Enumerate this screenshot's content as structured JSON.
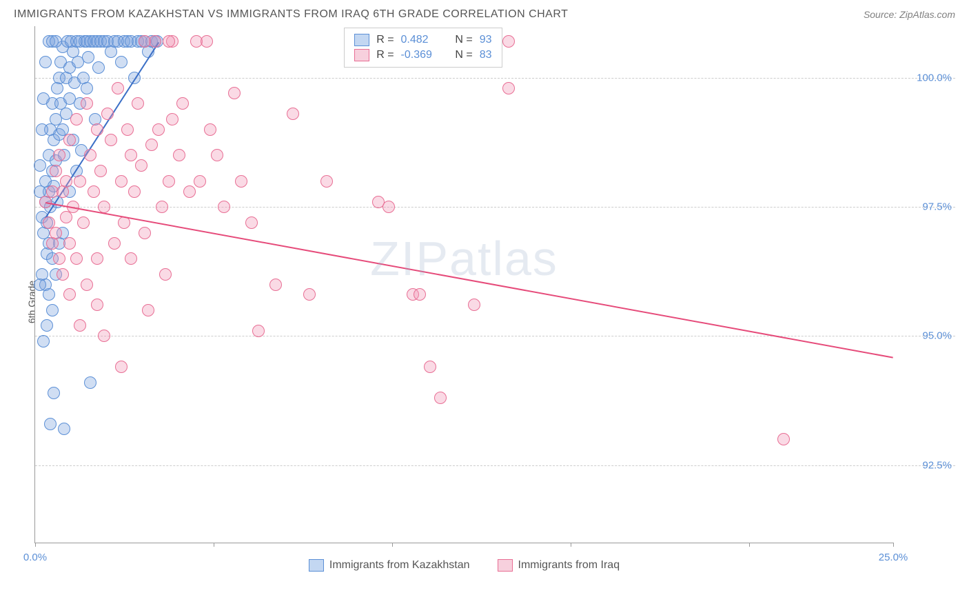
{
  "header": {
    "title": "IMMIGRANTS FROM KAZAKHSTAN VS IMMIGRANTS FROM IRAQ 6TH GRADE CORRELATION CHART",
    "source": "Source: ZipAtlas.com"
  },
  "watermark": {
    "part1": "ZIP",
    "part2": "atlas"
  },
  "chart": {
    "type": "scatter",
    "y_axis_label": "6th Grade",
    "xlim": [
      0,
      25
    ],
    "ylim": [
      91,
      101
    ],
    "x_ticks": [
      0,
      5.2,
      10.4,
      15.6,
      20.8,
      25
    ],
    "x_tick_labels": {
      "0": "0.0%",
      "25": "25.0%"
    },
    "y_grid": [
      92.5,
      95.0,
      97.5,
      100.0
    ],
    "y_tick_labels": {
      "92.5": "92.5%",
      "95.0": "95.0%",
      "97.5": "97.5%",
      "100.0": "100.0%"
    },
    "background_color": "#ffffff",
    "grid_color": "#cccccc",
    "axis_color": "#999999",
    "label_color": "#5b8fd6",
    "marker_radius": 9,
    "marker_opacity": 0.5,
    "series": [
      {
        "name": "Immigrants from Kazakhstan",
        "color_fill": "rgba(120,160,220,0.35)",
        "color_stroke": "#5b8fd6",
        "legend_swatch_fill": "#c3d7f2",
        "legend_swatch_border": "#5b8fd6",
        "R": "0.482",
        "N": "93",
        "trend": {
          "x1": 0.3,
          "y1": 97.3,
          "x2": 3.6,
          "y2": 100.7,
          "color": "#3b6fc6",
          "width": 2
        },
        "points": [
          [
            0.2,
            97.3
          ],
          [
            0.25,
            97.0
          ],
          [
            0.3,
            97.6
          ],
          [
            0.3,
            98.0
          ],
          [
            0.35,
            97.2
          ],
          [
            0.35,
            96.6
          ],
          [
            0.4,
            98.5
          ],
          [
            0.4,
            97.8
          ],
          [
            0.4,
            96.8
          ],
          [
            0.45,
            99.0
          ],
          [
            0.45,
            97.5
          ],
          [
            0.5,
            98.2
          ],
          [
            0.5,
            99.5
          ],
          [
            0.5,
            96.5
          ],
          [
            0.55,
            98.8
          ],
          [
            0.55,
            97.9
          ],
          [
            0.6,
            99.2
          ],
          [
            0.6,
            98.4
          ],
          [
            0.65,
            99.8
          ],
          [
            0.65,
            97.6
          ],
          [
            0.7,
            100.0
          ],
          [
            0.7,
            98.9
          ],
          [
            0.75,
            99.5
          ],
          [
            0.75,
            100.3
          ],
          [
            0.8,
            99.0
          ],
          [
            0.8,
            100.6
          ],
          [
            0.85,
            98.5
          ],
          [
            0.9,
            100.0
          ],
          [
            0.9,
            99.3
          ],
          [
            0.95,
            100.7
          ],
          [
            1.0,
            100.2
          ],
          [
            1.0,
            99.6
          ],
          [
            1.05,
            100.7
          ],
          [
            1.1,
            98.8
          ],
          [
            1.1,
            100.5
          ],
          [
            1.15,
            99.9
          ],
          [
            1.2,
            100.7
          ],
          [
            1.25,
            100.3
          ],
          [
            1.3,
            99.5
          ],
          [
            1.3,
            100.7
          ],
          [
            1.35,
            98.6
          ],
          [
            1.4,
            100.0
          ],
          [
            1.45,
            100.7
          ],
          [
            1.5,
            99.8
          ],
          [
            1.5,
            100.7
          ],
          [
            1.55,
            100.4
          ],
          [
            1.6,
            100.7
          ],
          [
            1.7,
            100.7
          ],
          [
            1.75,
            99.2
          ],
          [
            1.8,
            100.7
          ],
          [
            1.85,
            100.2
          ],
          [
            1.9,
            100.7
          ],
          [
            2.0,
            100.7
          ],
          [
            2.1,
            100.7
          ],
          [
            2.2,
            100.5
          ],
          [
            2.3,
            100.7
          ],
          [
            2.4,
            100.7
          ],
          [
            2.5,
            100.3
          ],
          [
            2.6,
            100.7
          ],
          [
            2.7,
            100.7
          ],
          [
            2.8,
            100.7
          ],
          [
            2.9,
            100.0
          ],
          [
            3.0,
            100.7
          ],
          [
            3.1,
            100.7
          ],
          [
            3.2,
            100.7
          ],
          [
            3.3,
            100.5
          ],
          [
            3.4,
            100.7
          ],
          [
            3.5,
            100.7
          ],
          [
            3.55,
            100.7
          ],
          [
            0.3,
            96.0
          ],
          [
            0.4,
            95.8
          ],
          [
            0.5,
            95.5
          ],
          [
            0.35,
            95.2
          ],
          [
            0.6,
            96.2
          ],
          [
            0.7,
            96.8
          ],
          [
            0.8,
            97.0
          ],
          [
            0.25,
            94.9
          ],
          [
            0.45,
            93.3
          ],
          [
            0.85,
            93.2
          ],
          [
            1.6,
            94.1
          ],
          [
            0.55,
            93.9
          ],
          [
            0.15,
            97.8
          ],
          [
            0.15,
            98.3
          ],
          [
            0.2,
            99.0
          ],
          [
            0.25,
            99.6
          ],
          [
            0.2,
            96.2
          ],
          [
            0.15,
            96.0
          ],
          [
            0.3,
            100.3
          ],
          [
            0.4,
            100.7
          ],
          [
            0.5,
            100.7
          ],
          [
            0.6,
            100.7
          ],
          [
            1.0,
            97.8
          ],
          [
            1.2,
            98.2
          ]
        ]
      },
      {
        "name": "Immigrants from Iraq",
        "color_fill": "rgba(240,150,180,0.35)",
        "color_stroke": "#e86e94",
        "legend_swatch_fill": "#f7d0dd",
        "legend_swatch_border": "#e86e94",
        "R": "-0.369",
        "N": "83",
        "trend": {
          "x1": 0.3,
          "y1": 97.6,
          "x2": 25.0,
          "y2": 94.6,
          "color": "#e64b7a",
          "width": 2
        },
        "points": [
          [
            0.3,
            97.6
          ],
          [
            0.4,
            97.2
          ],
          [
            0.5,
            97.8
          ],
          [
            0.5,
            96.8
          ],
          [
            0.6,
            98.2
          ],
          [
            0.6,
            97.0
          ],
          [
            0.7,
            98.5
          ],
          [
            0.7,
            96.5
          ],
          [
            0.8,
            97.8
          ],
          [
            0.8,
            96.2
          ],
          [
            0.9,
            98.0
          ],
          [
            0.9,
            97.3
          ],
          [
            1.0,
            98.8
          ],
          [
            1.0,
            96.8
          ],
          [
            1.1,
            97.5
          ],
          [
            1.2,
            99.2
          ],
          [
            1.2,
            96.5
          ],
          [
            1.3,
            98.0
          ],
          [
            1.4,
            97.2
          ],
          [
            1.5,
            99.5
          ],
          [
            1.5,
            96.0
          ],
          [
            1.6,
            98.5
          ],
          [
            1.7,
            97.8
          ],
          [
            1.8,
            99.0
          ],
          [
            1.8,
            96.5
          ],
          [
            1.9,
            98.2
          ],
          [
            2.0,
            97.5
          ],
          [
            2.1,
            99.3
          ],
          [
            2.2,
            98.8
          ],
          [
            2.3,
            96.8
          ],
          [
            2.4,
            99.8
          ],
          [
            2.5,
            98.0
          ],
          [
            2.6,
            97.2
          ],
          [
            2.7,
            99.0
          ],
          [
            2.8,
            96.5
          ],
          [
            2.9,
            97.8
          ],
          [
            3.0,
            99.5
          ],
          [
            3.1,
            98.3
          ],
          [
            3.2,
            97.0
          ],
          [
            3.3,
            95.5
          ],
          [
            3.4,
            98.7
          ],
          [
            3.5,
            100.7
          ],
          [
            3.6,
            99.0
          ],
          [
            3.7,
            97.5
          ],
          [
            3.8,
            96.2
          ],
          [
            3.9,
            98.0
          ],
          [
            4.0,
            100.7
          ],
          [
            4.0,
            99.2
          ],
          [
            4.2,
            98.5
          ],
          [
            4.3,
            99.5
          ],
          [
            4.5,
            97.8
          ],
          [
            4.7,
            100.7
          ],
          [
            4.8,
            98.0
          ],
          [
            5.0,
            100.7
          ],
          [
            5.1,
            99.0
          ],
          [
            5.3,
            98.5
          ],
          [
            5.5,
            97.5
          ],
          [
            5.8,
            99.7
          ],
          [
            6.0,
            98.0
          ],
          [
            6.3,
            97.2
          ],
          [
            7.0,
            96.0
          ],
          [
            7.5,
            99.3
          ],
          [
            8.0,
            95.8
          ],
          [
            8.5,
            98.0
          ],
          [
            6.5,
            95.1
          ],
          [
            10.0,
            97.6
          ],
          [
            10.3,
            97.5
          ],
          [
            11.0,
            95.8
          ],
          [
            11.2,
            95.8
          ],
          [
            11.5,
            94.4
          ],
          [
            11.8,
            93.8
          ],
          [
            12.8,
            95.6
          ],
          [
            13.8,
            100.7
          ],
          [
            13.8,
            99.8
          ],
          [
            21.8,
            93.0
          ],
          [
            1.8,
            95.6
          ],
          [
            2.5,
            94.4
          ],
          [
            2.0,
            95.0
          ],
          [
            2.8,
            98.5
          ],
          [
            3.2,
            100.7
          ],
          [
            3.9,
            100.7
          ],
          [
            1.3,
            95.2
          ],
          [
            1.0,
            95.8
          ]
        ]
      }
    ],
    "bottom_legend": [
      {
        "label": "Immigrants from Kazakhstan",
        "fill": "#c3d7f2",
        "border": "#5b8fd6"
      },
      {
        "label": "Immigrants from Iraq",
        "fill": "#f7d0dd",
        "border": "#e86e94"
      }
    ]
  }
}
